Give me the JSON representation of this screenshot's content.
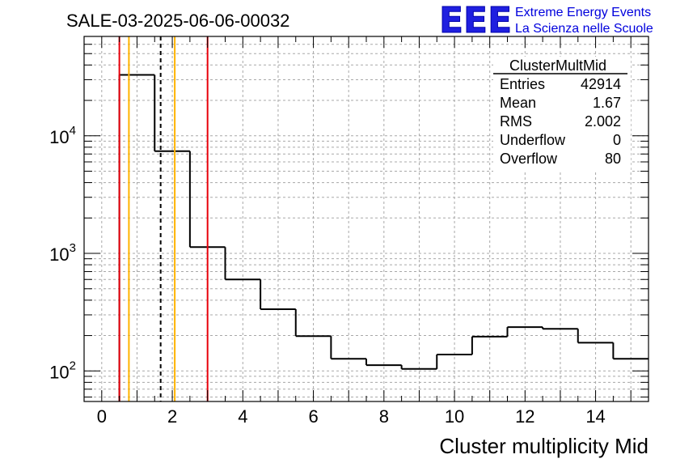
{
  "chart_data": {
    "type": "histogram",
    "title": "SALE-03-2025-06-06-00032",
    "xlabel": "Cluster multiplicity Mid",
    "ylabel": "",
    "xlim": [
      -0.5,
      15.5
    ],
    "ylim": [
      55,
      70000
    ],
    "yscale": "log",
    "grid": true,
    "x_ticks": [
      0,
      2,
      4,
      6,
      8,
      10,
      12,
      14
    ],
    "y_ticks": [
      {
        "base": "10",
        "exp": "2",
        "value": 100
      },
      {
        "base": "10",
        "exp": "3",
        "value": 1000
      },
      {
        "base": "10",
        "exp": "4",
        "value": 10000
      }
    ],
    "bins": [
      {
        "low": 0.5,
        "high": 1.5,
        "count": 33000
      },
      {
        "low": 1.5,
        "high": 2.5,
        "count": 7400
      },
      {
        "low": 2.5,
        "high": 3.5,
        "count": 1130
      },
      {
        "low": 3.5,
        "high": 4.5,
        "count": 600
      },
      {
        "low": 4.5,
        "high": 5.5,
        "count": 335
      },
      {
        "low": 5.5,
        "high": 6.5,
        "count": 198
      },
      {
        "low": 6.5,
        "high": 7.5,
        "count": 127
      },
      {
        "low": 7.5,
        "high": 8.5,
        "count": 112
      },
      {
        "low": 8.5,
        "high": 9.5,
        "count": 104
      },
      {
        "low": 9.5,
        "high": 10.5,
        "count": 138
      },
      {
        "low": 10.5,
        "high": 11.5,
        "count": 196
      },
      {
        "low": 11.5,
        "high": 12.5,
        "count": 236
      },
      {
        "low": 12.5,
        "high": 13.5,
        "count": 228
      },
      {
        "low": 13.5,
        "high": 14.5,
        "count": 174
      },
      {
        "low": 14.5,
        "high": 15.5,
        "count": 127
      }
    ],
    "markers": [
      {
        "name": "red-line-low",
        "x": 0.5,
        "color": "#e8000b",
        "style": "solid"
      },
      {
        "name": "orange-line-low",
        "x": 0.77,
        "color": "#ffb300",
        "style": "solid"
      },
      {
        "name": "mean-line",
        "x": 1.67,
        "color": "#000000",
        "style": "dashed"
      },
      {
        "name": "orange-line-high",
        "x": 2.07,
        "color": "#ffb300",
        "style": "solid"
      },
      {
        "name": "red-line-high",
        "x": 3.0,
        "color": "#e8000b",
        "style": "solid"
      }
    ],
    "stats": {
      "name": "ClusterMultMid",
      "rows": [
        {
          "label": "Entries",
          "value": "42914"
        },
        {
          "label": "Mean",
          "value": "1.67"
        },
        {
          "label": "RMS",
          "value": "2.002"
        },
        {
          "label": "Underflow",
          "value": "0"
        },
        {
          "label": "Overflow",
          "value": "80"
        }
      ]
    }
  },
  "logo": {
    "mark": "EEE",
    "line1": "Extreme Energy Events",
    "line2": "La Scienza nelle Scuole"
  }
}
